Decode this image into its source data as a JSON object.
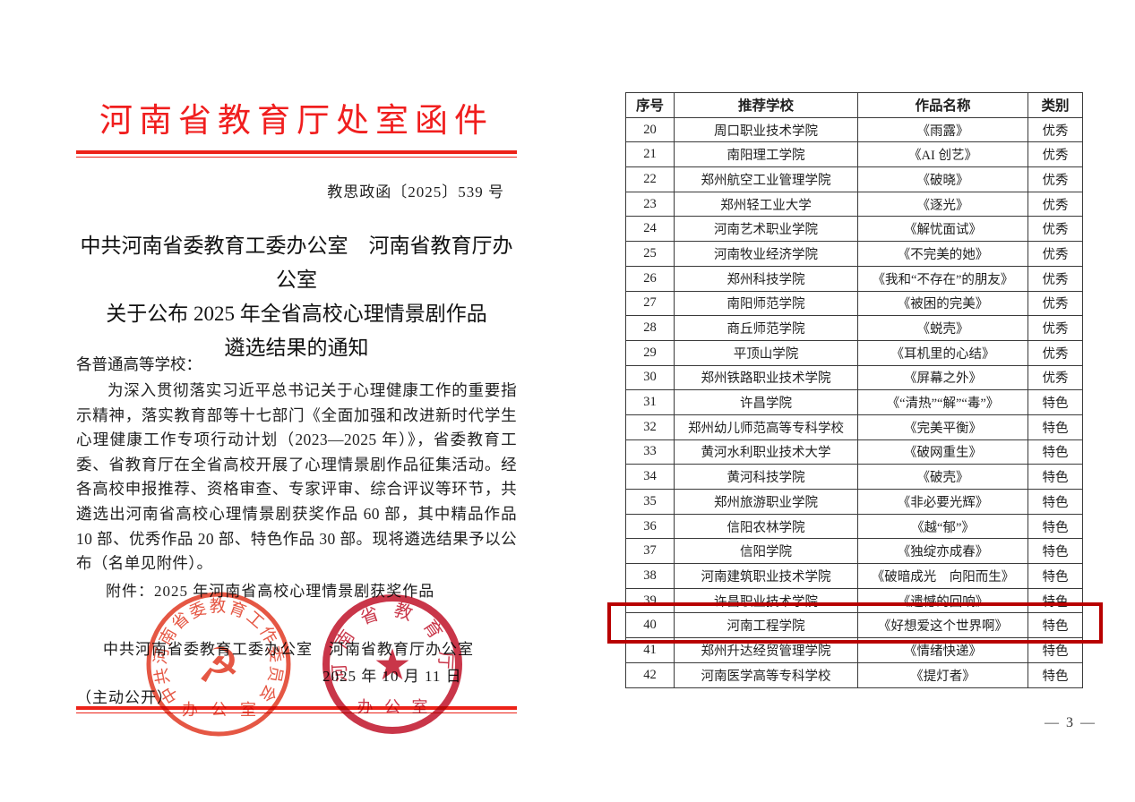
{
  "letterhead": {
    "title": "河南省教育厅处室函件",
    "doc_number": "教思政函〔2025〕539 号"
  },
  "notice": {
    "title_line1": "中共河南省委教育工委办公室　河南省教育厅办公室",
    "title_line2": "关于公布 2025 年全省高校心理情景剧作品",
    "title_line3": "遴选结果的通知",
    "salutation": "各普通高等学校：",
    "body": "为深入贯彻落实习近平总书记关于心理健康工作的重要指示精神，落实教育部等十七部门《全面加强和改进新时代学生心理健康工作专项行动计划（2023—2025 年）》，省委教育工委、省教育厅在全省高校开展了心理情景剧作品征集活动。经各高校申报推荐、资格审查、专家评审、综合评议等环节，共遴选出河南省高校心理情景剧获奖作品 60 部，其中精品作品 10 部、优秀作品 20 部、特色作品 30 部。现将遴选结果予以公布（名单见附件）。",
    "attachment": "附件：2025 年河南省高校心理情景剧获奖作品",
    "signature_line": "中共河南省委教育工委办公室　河南省教育厅办公室",
    "date": "2025 年 10 月 11 日",
    "disclosure": "（主动公开）"
  },
  "seals": {
    "left": {
      "arc_text": "中共河南省委教育工作委员会",
      "bottom_text": "办 公 室",
      "symbol_glyph": "☭",
      "color": "#e23f2a"
    },
    "right": {
      "arc_text": "河南省教育厅",
      "bottom_text": "办 公 室",
      "symbol_glyph": "★",
      "color": "#c21a30"
    }
  },
  "table": {
    "headers": [
      "序号",
      "推荐学校",
      "作品名称",
      "类别"
    ],
    "rows": [
      [
        "20",
        "周口职业技术学院",
        "《雨露》",
        "优秀"
      ],
      [
        "21",
        "南阳理工学院",
        "《AI 创艺》",
        "优秀"
      ],
      [
        "22",
        "郑州航空工业管理学院",
        "《破晓》",
        "优秀"
      ],
      [
        "23",
        "郑州轻工业大学",
        "《逐光》",
        "优秀"
      ],
      [
        "24",
        "河南艺术职业学院",
        "《解忧面试》",
        "优秀"
      ],
      [
        "25",
        "河南牧业经济学院",
        "《不完美的她》",
        "优秀"
      ],
      [
        "26",
        "郑州科技学院",
        "《我和“不存在”的朋友》",
        "优秀"
      ],
      [
        "27",
        "南阳师范学院",
        "《被困的完美》",
        "优秀"
      ],
      [
        "28",
        "商丘师范学院",
        "《蜕壳》",
        "优秀"
      ],
      [
        "29",
        "平顶山学院",
        "《耳机里的心结》",
        "优秀"
      ],
      [
        "30",
        "郑州铁路职业技术学院",
        "《屏幕之外》",
        "优秀"
      ],
      [
        "31",
        "许昌学院",
        "《“清热”“解”“毒”》",
        "特色"
      ],
      [
        "32",
        "郑州幼儿师范高等专科学校",
        "《完美平衡》",
        "特色"
      ],
      [
        "33",
        "黄河水利职业技术大学",
        "《破网重生》",
        "特色"
      ],
      [
        "34",
        "黄河科技学院",
        "《破壳》",
        "特色"
      ],
      [
        "35",
        "郑州旅游职业学院",
        "《非必要光辉》",
        "特色"
      ],
      [
        "36",
        "信阳农林学院",
        "《越“郁”》",
        "特色"
      ],
      [
        "37",
        "信阳学院",
        "《独绽亦成春》",
        "特色"
      ],
      [
        "38",
        "河南建筑职业技术学院",
        "《破暗成光　向阳而生》",
        "特色"
      ],
      [
        "39",
        "许昌职业技术学院",
        "《遗憾的回响》",
        "特色"
      ],
      [
        "40",
        "河南工程学院",
        "《好想爱这个世界啊》",
        "特色"
      ],
      [
        "41",
        "郑州升达经贸管理学院",
        "《情绪快递》",
        "特色"
      ],
      [
        "42",
        "河南医学高等专科学校",
        "《提灯者》",
        "特色"
      ]
    ],
    "highlighted_row_index": "40"
  },
  "page": {
    "number_label": "— 3 —"
  },
  "colors": {
    "letterhead_red": "#f01e1e",
    "rule_red": "#ec2218",
    "highlight_red": "#b80000",
    "seal_left_red": "#e23f2a",
    "seal_right_red": "#c21a30"
  }
}
